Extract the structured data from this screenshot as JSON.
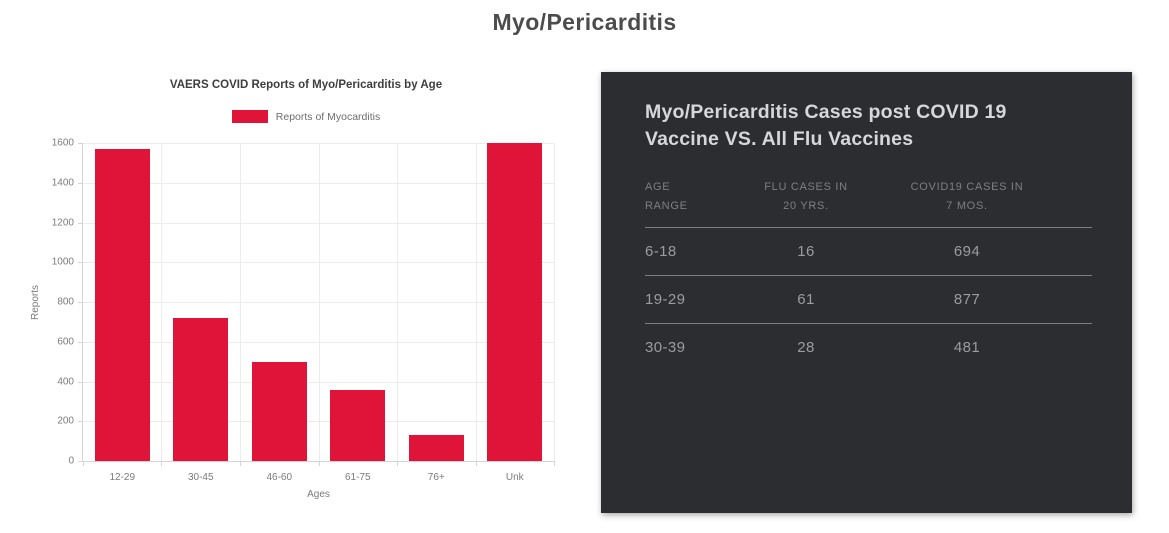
{
  "page_title": "Myo/Pericarditis",
  "colors": {
    "bar_red": "#e01438",
    "panel_bg": "#2b2d31"
  },
  "chart_data": {
    "type": "bar",
    "title": "VAERS COVID Reports of Myo/Pericarditis by Age",
    "legend": "Reports of Myocarditis",
    "categories": [
      "12-29",
      "30-45",
      "46-60",
      "61-75",
      "76+",
      "Unk"
    ],
    "values": [
      1570,
      720,
      500,
      355,
      130,
      1600
    ],
    "xlabel": "Ages",
    "ylabel": "Reports",
    "ylim": [
      0,
      1600
    ],
    "ytick_step": 200,
    "grid": true,
    "legend_position": "top",
    "bar_color": "#e01438"
  },
  "panel": {
    "title": "Myo/Pericarditis Cases post COVID 19 Vaccine VS. All Flu Vaccines",
    "table": {
      "headers": [
        [
          "AGE",
          "RANGE"
        ],
        [
          "FLU CASES IN",
          "20 YRS."
        ],
        [
          "COVID19 CASES IN",
          "7 MOS."
        ]
      ],
      "rows": [
        [
          "6-18",
          "16",
          "694"
        ],
        [
          "19-29",
          "61",
          "877"
        ],
        [
          "30-39",
          "28",
          "481"
        ]
      ]
    }
  }
}
